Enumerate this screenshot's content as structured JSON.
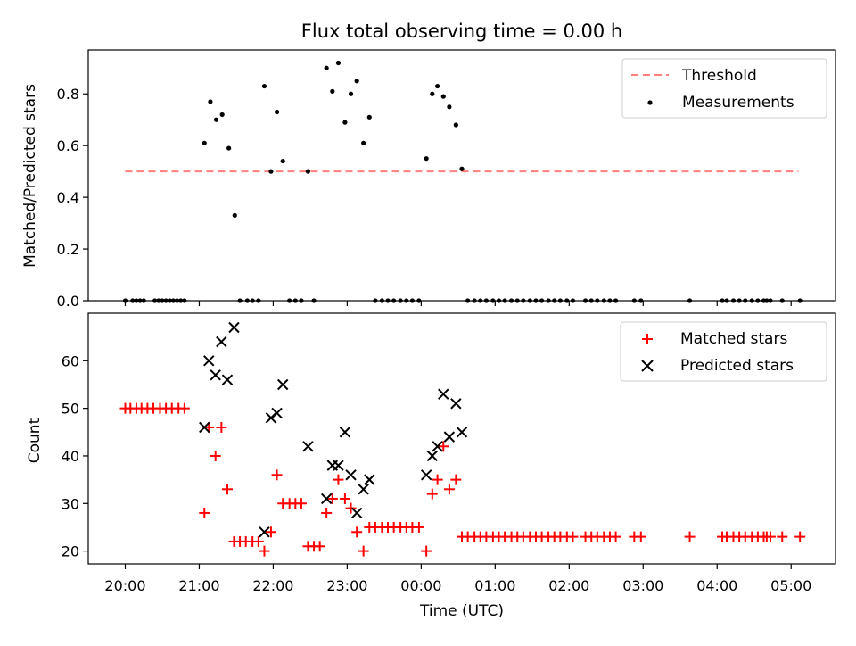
{
  "chart_data": [
    {
      "type": "scatter",
      "title": "Flux total observing time = 0.00 h",
      "ylabel": "Matched/Predicted stars",
      "xlabel": "",
      "ylim": [
        0,
        0.97
      ],
      "yticks": [
        "0.0",
        "0.2",
        "0.4",
        "0.6",
        "0.8"
      ],
      "ytick_values": [
        0,
        0.2,
        0.4,
        0.6,
        0.8
      ],
      "legend": {
        "placement": "top-right",
        "threshold_label": "Threshold",
        "measurements_label": "Measurements"
      },
      "threshold": {
        "value": 0.5,
        "x_start": 0.0,
        "x_end": 9.1,
        "color": "#ff7f7f"
      },
      "series": [
        {
          "name": "Measurements",
          "x": [
            0.0,
            0.1,
            0.15,
            0.2,
            0.25,
            0.4,
            0.45,
            0.5,
            0.55,
            0.6,
            0.65,
            0.7,
            0.75,
            0.8,
            1.07,
            1.15,
            1.23,
            1.31,
            1.4,
            1.48,
            1.55,
            1.65,
            1.72,
            1.8,
            1.88,
            1.97,
            2.05,
            2.13,
            2.22,
            2.3,
            2.38,
            2.47,
            2.55,
            2.72,
            2.8,
            2.88,
            2.97,
            3.05,
            3.13,
            3.22,
            3.3,
            3.38,
            3.47,
            3.55,
            3.63,
            3.72,
            3.8,
            3.88,
            3.97,
            4.07,
            4.15,
            4.22,
            4.3,
            4.38,
            4.47,
            4.55,
            4.63,
            4.72,
            4.8,
            4.88,
            4.97,
            5.05,
            5.13,
            5.22,
            5.3,
            5.38,
            5.47,
            5.55,
            5.63,
            5.72,
            5.8,
            5.88,
            5.97,
            6.05,
            6.22,
            6.3,
            6.38,
            6.47,
            6.55,
            6.63,
            6.88,
            6.97,
            7.63,
            8.07,
            8.13,
            8.22,
            8.3,
            8.38,
            8.47,
            8.55,
            8.63,
            8.67,
            8.72,
            8.88,
            9.12
          ],
          "y": [
            0,
            0,
            0,
            0,
            0,
            0,
            0,
            0,
            0,
            0,
            0,
            0,
            0,
            0,
            0.61,
            0.77,
            0.7,
            0.72,
            0.59,
            0.33,
            0,
            0,
            0,
            0,
            0.83,
            0.5,
            0.73,
            0.54,
            0,
            0,
            0,
            0.5,
            0,
            0.9,
            0.81,
            0.92,
            0.69,
            0.8,
            0.85,
            0.61,
            0.71,
            0,
            0,
            0,
            0,
            0,
            0,
            0,
            0,
            0.55,
            0.8,
            0.83,
            0.79,
            0.75,
            0.68,
            0.51,
            0,
            0,
            0,
            0,
            0,
            0,
            0,
            0,
            0,
            0,
            0,
            0,
            0,
            0,
            0,
            0,
            0,
            0,
            0,
            0,
            0,
            0,
            0,
            0,
            0,
            0,
            0,
            0,
            0,
            0,
            0,
            0,
            0,
            0,
            0,
            0,
            0,
            0,
            0
          ],
          "color": "#000000"
        }
      ]
    },
    {
      "type": "scatter",
      "title": "",
      "xlabel": "Time (UTC)",
      "ylabel": "Count",
      "ylim": [
        17.3,
        70
      ],
      "yticks": [
        "20",
        "30",
        "40",
        "50",
        "60"
      ],
      "ytick_values": [
        20,
        30,
        40,
        50,
        60
      ],
      "xlim": [
        -0.5,
        9.6
      ],
      "xticks": [
        "20:00",
        "21:00",
        "22:00",
        "23:00",
        "00:00",
        "01:00",
        "02:00",
        "03:00",
        "04:00",
        "05:00"
      ],
      "xtick_values": [
        0,
        1,
        2,
        3,
        4,
        5,
        6,
        7,
        8,
        9
      ],
      "legend": {
        "placement": "top-right",
        "matched_label": "Matched stars",
        "predicted_label": "Predicted stars"
      },
      "series": [
        {
          "name": "Matched stars",
          "marker": "plus",
          "color": "#ff0000",
          "x": [
            0.0,
            0.07,
            0.15,
            0.22,
            0.3,
            0.38,
            0.47,
            0.55,
            0.63,
            0.72,
            0.8,
            1.07,
            1.13,
            1.22,
            1.3,
            1.38,
            1.47,
            1.55,
            1.63,
            1.72,
            1.8,
            1.88,
            1.97,
            2.05,
            2.13,
            2.22,
            2.3,
            2.38,
            2.47,
            2.55,
            2.63,
            2.72,
            2.8,
            2.88,
            2.97,
            3.05,
            3.13,
            3.22,
            3.3,
            3.38,
            3.47,
            3.55,
            3.63,
            3.72,
            3.8,
            3.88,
            3.97,
            4.07,
            4.15,
            4.22,
            4.3,
            4.38,
            4.47,
            4.55,
            4.63,
            4.72,
            4.8,
            4.88,
            4.97,
            5.05,
            5.13,
            5.22,
            5.3,
            5.38,
            5.47,
            5.55,
            5.63,
            5.72,
            5.8,
            5.88,
            5.97,
            6.05,
            6.22,
            6.3,
            6.38,
            6.47,
            6.55,
            6.63,
            6.88,
            6.97,
            7.63,
            8.07,
            8.13,
            8.22,
            8.3,
            8.38,
            8.47,
            8.55,
            8.63,
            8.67,
            8.72,
            8.88,
            9.12
          ],
          "y": [
            50,
            50,
            50,
            50,
            50,
            50,
            50,
            50,
            50,
            50,
            50,
            28,
            46,
            40,
            46,
            33,
            22,
            22,
            22,
            22,
            22,
            20,
            24,
            36,
            30,
            30,
            30,
            30,
            21,
            21,
            21,
            28,
            31,
            35,
            31,
            29,
            24,
            20,
            25,
            25,
            25,
            25,
            25,
            25,
            25,
            25,
            25,
            20,
            32,
            35,
            42,
            33,
            35,
            23,
            23,
            23,
            23,
            23,
            23,
            23,
            23,
            23,
            23,
            23,
            23,
            23,
            23,
            23,
            23,
            23,
            23,
            23,
            23,
            23,
            23,
            23,
            23,
            23,
            23,
            23,
            23,
            23,
            23,
            23,
            23,
            23,
            23,
            23,
            23,
            23,
            23,
            23,
            23
          ],
          "display_note": ""
        },
        {
          "name": "Predicted stars",
          "marker": "x",
          "color": "#000000",
          "x": [
            1.07,
            1.13,
            1.22,
            1.3,
            1.38,
            1.47,
            1.88,
            1.97,
            2.05,
            2.13,
            2.47,
            2.72,
            2.8,
            2.88,
            2.97,
            3.05,
            3.13,
            3.22,
            3.3,
            4.07,
            4.15,
            4.22,
            4.3,
            4.38,
            4.47,
            4.55
          ],
          "y": [
            46,
            60,
            57,
            64,
            56,
            67,
            24,
            48,
            49,
            55,
            42,
            31,
            38,
            38,
            45,
            36,
            28,
            33,
            35,
            36,
            40,
            42,
            53,
            44,
            51,
            45
          ]
        }
      ]
    }
  ]
}
